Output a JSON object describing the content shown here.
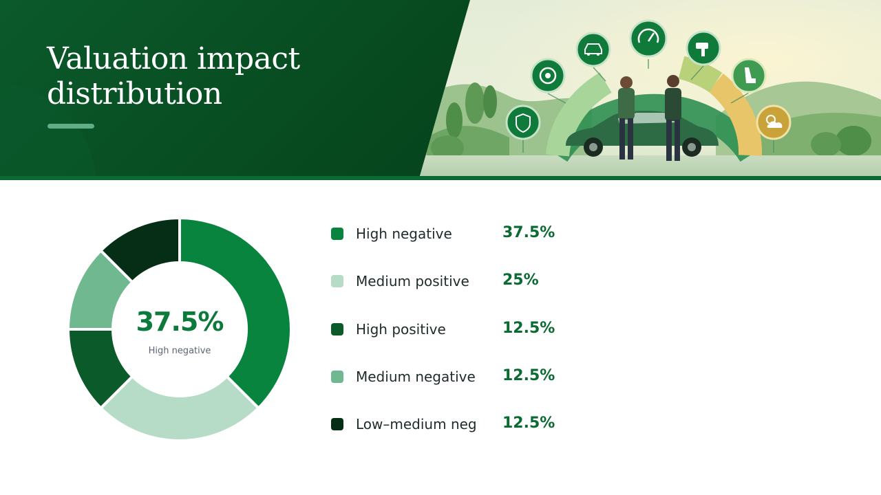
{
  "slide": {
    "title": "Valuation impact distribution"
  },
  "colors": {
    "header_dark": "#07491f",
    "accent": "#0b7a3b",
    "title_underline": "#5fae86"
  },
  "illustration": {
    "icons": [
      "shield-icon",
      "tire-icon",
      "car-icon",
      "speedometer-icon",
      "spray-gun-icon",
      "car-seat-icon",
      "weather-icon"
    ]
  },
  "chart_data": {
    "type": "pie",
    "variant": "donut",
    "center_value": "37.5%",
    "center_label": "High negative",
    "series": [
      {
        "name": "High negative",
        "value": 37.5,
        "label": "37.5%",
        "color": "#08843e"
      },
      {
        "name": "Medium positive",
        "value": 25,
        "label": "25%",
        "color": "#b6dcc8"
      },
      {
        "name": "High positive",
        "value": 12.5,
        "label": "12.5%",
        "color": "#0b5a2a"
      },
      {
        "name": "Medium negative",
        "value": 12.5,
        "label": "12.5%",
        "color": "#6fb890"
      },
      {
        "name": "Low–medium neg",
        "value": 12.5,
        "label": "12.5%",
        "color": "#062e16"
      }
    ]
  }
}
